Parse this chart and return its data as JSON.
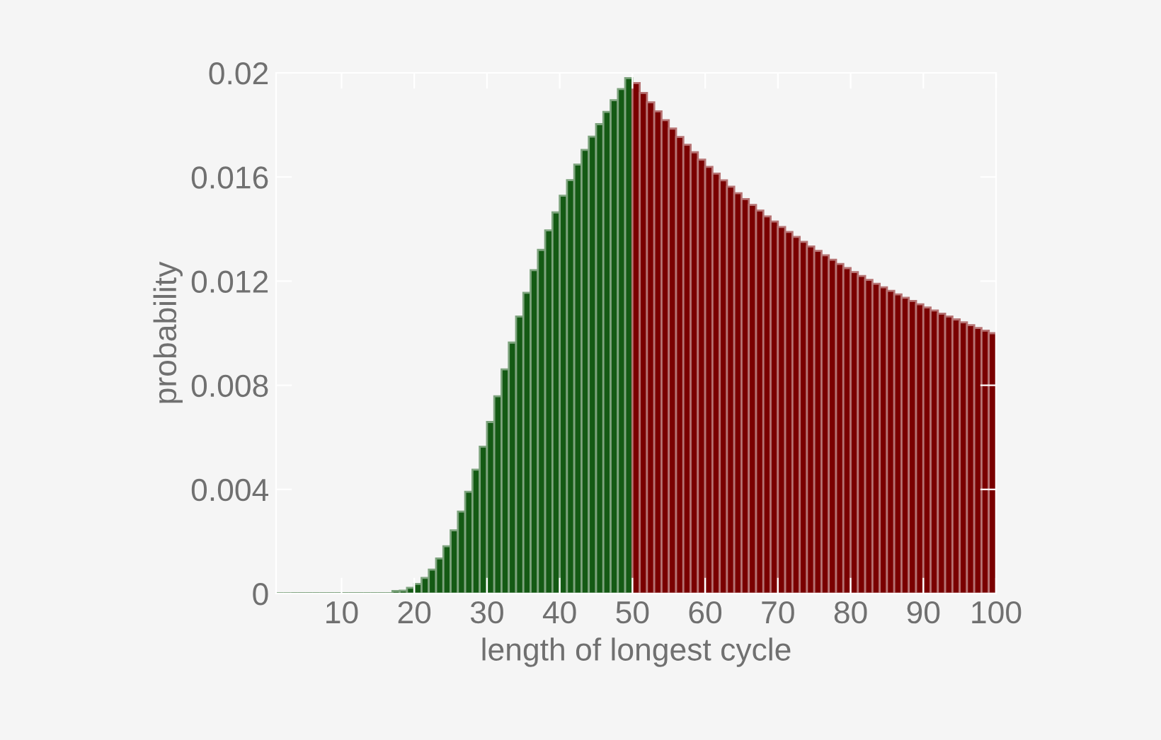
{
  "chart_data": {
    "type": "histogram",
    "xlabel": "length of longest cycle",
    "ylabel": "probability",
    "bins": [
      1,
      2,
      3,
      4,
      5,
      6,
      7,
      8,
      9,
      10,
      11,
      12,
      13,
      14,
      15,
      16,
      17,
      18,
      19,
      20,
      21,
      22,
      23,
      24,
      25,
      26,
      27,
      28,
      29,
      30,
      31,
      32,
      33,
      34,
      35,
      36,
      37,
      38,
      39,
      40,
      41,
      42,
      43,
      44,
      45,
      46,
      47,
      48,
      49,
      50,
      51,
      52,
      53,
      54,
      55,
      56,
      57,
      58,
      59,
      60,
      61,
      62,
      63,
      64,
      65,
      66,
      67,
      68,
      69,
      70,
      71,
      72,
      73,
      74,
      75,
      76,
      77,
      78,
      79,
      80,
      81,
      82,
      83,
      84,
      85,
      86,
      87,
      88,
      89,
      90,
      91,
      92,
      93,
      94,
      95,
      96,
      97,
      98,
      99,
      100
    ],
    "values": [
      0,
      0,
      0,
      0,
      0,
      0,
      0,
      0,
      0,
      0,
      0,
      0,
      0,
      0,
      0,
      0,
      0.0001,
      0.00011,
      0.00022,
      0.00037,
      0.0006,
      0.00092,
      0.00135,
      0.00182,
      0.00243,
      0.00315,
      0.00391,
      0.00476,
      0.00564,
      0.00659,
      0.00758,
      0.00861,
      0.00964,
      0.01064,
      0.01155,
      0.01242,
      0.0132,
      0.01395,
      0.01464,
      0.01528,
      0.01588,
      0.01648,
      0.01704,
      0.01755,
      0.01803,
      0.0185,
      0.01895,
      0.01938,
      0.0198,
      0.01961,
      0.01923,
      0.01887,
      0.01852,
      0.01818,
      0.01786,
      0.01754,
      0.01724,
      0.01695,
      0.01667,
      0.01639,
      0.01613,
      0.01587,
      0.01563,
      0.01538,
      0.01515,
      0.01493,
      0.01471,
      0.01449,
      0.01429,
      0.01408,
      0.01389,
      0.0137,
      0.01351,
      0.01333,
      0.01316,
      0.01299,
      0.01282,
      0.01266,
      0.0125,
      0.01235,
      0.0122,
      0.01205,
      0.0119,
      0.01176,
      0.01163,
      0.01149,
      0.01136,
      0.01124,
      0.01111,
      0.01099,
      0.01087,
      0.01075,
      0.01064,
      0.01053,
      0.01042,
      0.01031,
      0.0102,
      0.0101,
      0.01
    ],
    "colors": [
      "#145a14",
      "#145a14",
      "#145a14",
      "#145a14",
      "#145a14",
      "#145a14",
      "#145a14",
      "#145a14",
      "#145a14",
      "#145a14",
      "#145a14",
      "#145a14",
      "#145a14",
      "#145a14",
      "#145a14",
      "#145a14",
      "#145a14",
      "#145a14",
      "#145a14",
      "#145a14",
      "#145a14",
      "#145a14",
      "#145a14",
      "#145a14",
      "#145a14",
      "#145a14",
      "#145a14",
      "#145a14",
      "#145a14",
      "#145a14",
      "#145a14",
      "#145a14",
      "#145a14",
      "#145a14",
      "#145a14",
      "#145a14",
      "#145a14",
      "#145a14",
      "#145a14",
      "#145a14",
      "#145a14",
      "#145a14",
      "#145a14",
      "#145a14",
      "#145a14",
      "#145a14",
      "#145a14",
      "#145a14",
      "#145a14",
      "#7a0000",
      "#7a0000",
      "#7a0000",
      "#7a0000",
      "#7a0000",
      "#7a0000",
      "#7a0000",
      "#7a0000",
      "#7a0000",
      "#7a0000",
      "#7a0000",
      "#7a0000",
      "#7a0000",
      "#7a0000",
      "#7a0000",
      "#7a0000",
      "#7a0000",
      "#7a0000",
      "#7a0000",
      "#7a0000",
      "#7a0000",
      "#7a0000",
      "#7a0000",
      "#7a0000",
      "#7a0000",
      "#7a0000",
      "#7a0000",
      "#7a0000",
      "#7a0000",
      "#7a0000",
      "#7a0000",
      "#7a0000",
      "#7a0000",
      "#7a0000",
      "#7a0000",
      "#7a0000",
      "#7a0000",
      "#7a0000",
      "#7a0000",
      "#7a0000",
      "#7a0000",
      "#7a0000",
      "#7a0000",
      "#7a0000",
      "#7a0000",
      "#7a0000",
      "#7a0000",
      "#7a0000",
      "#7a0000",
      "#7a0000"
    ],
    "xlim": [
      1,
      100
    ],
    "ylim": [
      0,
      0.02
    ],
    "xticks": [
      10,
      20,
      30,
      40,
      50,
      60,
      70,
      80,
      90,
      100
    ],
    "yticks": [
      0,
      0.004,
      0.008,
      0.012,
      0.016,
      0.02
    ],
    "grid": false
  }
}
